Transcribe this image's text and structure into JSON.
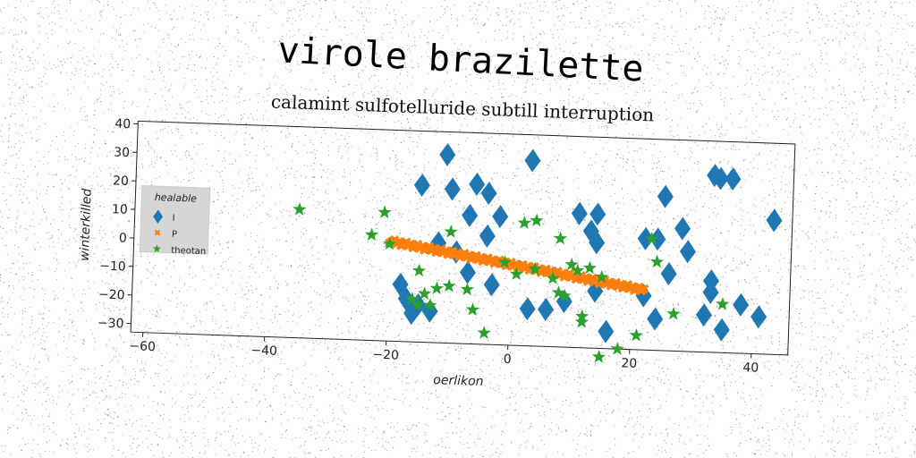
{
  "chart_data": {
    "type": "scatter",
    "suptitle": "virole brazilette",
    "title": "calamint sulfotelluride subtill interruption",
    "xlabel": "oerlikon",
    "ylabel": "winterkilled",
    "xlim": [
      -62,
      46
    ],
    "ylim": [
      -33,
      41
    ],
    "xticks": [
      -60,
      -40,
      -20,
      0,
      20,
      40
    ],
    "yticks": [
      -30,
      -20,
      -10,
      0,
      10,
      20,
      30,
      40
    ],
    "grid": false,
    "legend": {
      "title": "healable",
      "position": "center-left"
    },
    "series": [
      {
        "name": "I",
        "marker": "diamond",
        "color": "#1f77b4",
        "points": [
          [
            -11,
            33
          ],
          [
            3,
            32
          ],
          [
            -15,
            22
          ],
          [
            -10,
            21
          ],
          [
            -6,
            23
          ],
          [
            -4,
            20
          ],
          [
            -7,
            12
          ],
          [
            -2,
            12
          ],
          [
            -4,
            5
          ],
          [
            -12,
            2
          ],
          [
            -9,
            -1
          ],
          [
            -7,
            -8
          ],
          [
            -3,
            -12
          ],
          [
            -18,
            -13
          ],
          [
            -17,
            -18
          ],
          [
            -15,
            -20
          ],
          [
            -16,
            -23
          ],
          [
            -13,
            -22
          ],
          [
            3,
            -20
          ],
          [
            6,
            -20
          ],
          [
            9,
            -17
          ],
          [
            11,
            14
          ],
          [
            14,
            14
          ],
          [
            13,
            8
          ],
          [
            14,
            4
          ],
          [
            14,
            -13
          ],
          [
            16,
            -27
          ],
          [
            22,
            6
          ],
          [
            24,
            6
          ],
          [
            25,
            21
          ],
          [
            28,
            10
          ],
          [
            29,
            2
          ],
          [
            26,
            -6
          ],
          [
            24,
            -22
          ],
          [
            22,
            -14
          ],
          [
            33,
            29
          ],
          [
            34,
            28
          ],
          [
            36,
            28
          ],
          [
            33,
            -8
          ],
          [
            33,
            -12
          ],
          [
            32,
            -20
          ],
          [
            35,
            -25
          ],
          [
            38,
            -16
          ],
          [
            41,
            -20
          ],
          [
            43,
            14
          ]
        ]
      },
      {
        "name": "P",
        "marker": "x",
        "color": "#ff7f0e",
        "line": {
          "x0": -20,
          "y0": 2,
          "x1": 22,
          "y1": -12,
          "count": 110
        }
      },
      {
        "name": "theotan",
        "marker": "star",
        "color": "#2ca02c",
        "points": [
          [
            -35,
            12
          ],
          [
            -21,
            12
          ],
          [
            -23,
            4
          ],
          [
            -20,
            1
          ],
          [
            -10,
            6
          ],
          [
            2,
            10
          ],
          [
            4,
            11
          ],
          [
            8,
            5
          ],
          [
            -15,
            -8
          ],
          [
            -10,
            -13
          ],
          [
            -12,
            -14
          ],
          [
            -14,
            -16
          ],
          [
            -16,
            -18
          ],
          [
            -15,
            -20
          ],
          [
            -13,
            -20
          ],
          [
            -7,
            -14
          ],
          [
            -6,
            -21
          ],
          [
            -4,
            -29
          ],
          [
            -1,
            -4
          ],
          [
            1,
            -8
          ],
          [
            4,
            -6
          ],
          [
            7,
            -9
          ],
          [
            9,
            -15
          ],
          [
            11,
            -6
          ],
          [
            13,
            -5
          ],
          [
            15,
            -8
          ],
          [
            12,
            -22
          ],
          [
            12,
            -24
          ],
          [
            23,
            6
          ],
          [
            24,
            -2
          ],
          [
            27,
            -20
          ],
          [
            21,
            -28
          ],
          [
            18,
            -33
          ],
          [
            15,
            -36
          ],
          [
            35,
            -16
          ],
          [
            8,
            -14
          ],
          [
            10,
            -4
          ]
        ]
      }
    ]
  }
}
